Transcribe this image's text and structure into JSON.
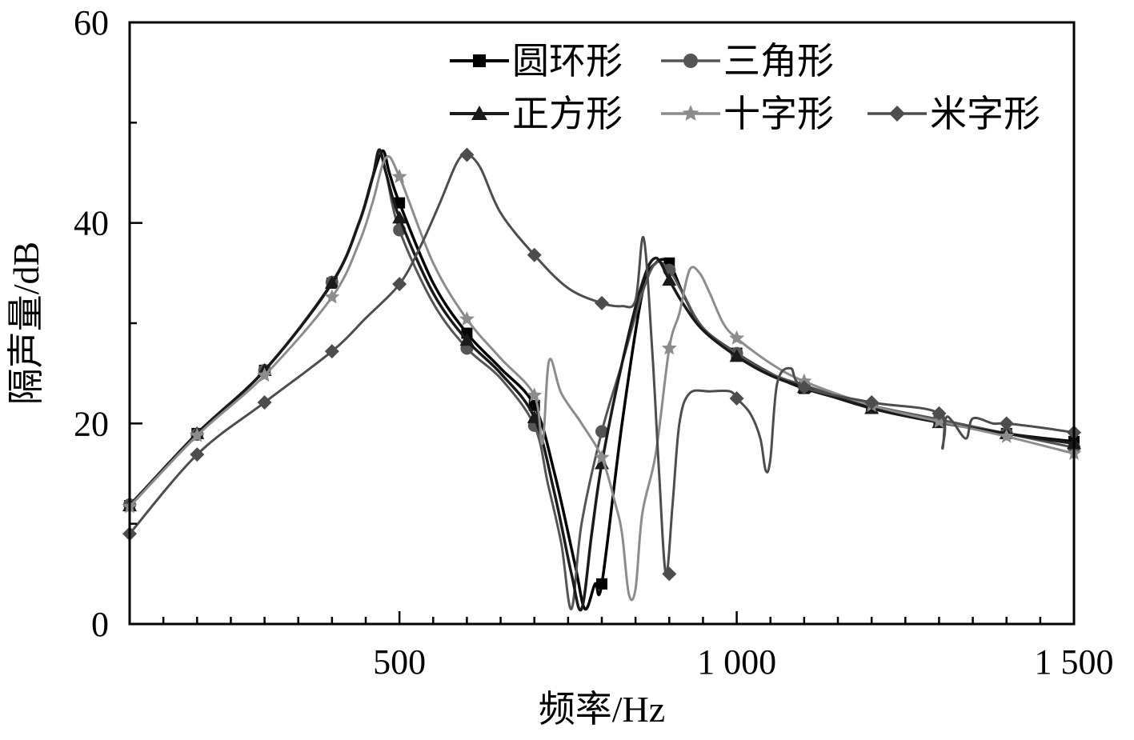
{
  "chart_data": {
    "type": "line",
    "xlabel": "频率/Hz",
    "ylabel": "隔声量/dB",
    "xlim": [
      100,
      1500
    ],
    "ylim": [
      0,
      60
    ],
    "x_ticks": [
      500,
      1000,
      1500
    ],
    "x_tick_labels": [
      "500",
      "1 000",
      "1 500"
    ],
    "y_ticks": [
      0,
      20,
      40,
      60
    ],
    "y_tick_labels": [
      "0",
      "20",
      "40",
      "60"
    ],
    "legend_position": "top-right",
    "series": [
      {
        "name": "圆环形",
        "color": "#000000",
        "marker": "square",
        "width": 3.5,
        "points": [
          [
            100,
            11.8
          ],
          [
            200,
            19
          ],
          [
            300,
            25.3
          ],
          [
            400,
            34
          ],
          [
            440,
            40
          ],
          [
            460,
            44.5
          ],
          [
            475,
            47.2
          ],
          [
            485,
            45
          ],
          [
            500,
            42
          ],
          [
            550,
            34
          ],
          [
            600,
            29
          ],
          [
            650,
            25.5
          ],
          [
            700,
            21.8
          ],
          [
            730,
            15
          ],
          [
            760,
            6
          ],
          [
            775,
            1.5
          ],
          [
            790,
            4
          ],
          [
            800,
            4
          ],
          [
            830,
            20
          ],
          [
            860,
            33
          ],
          [
            880,
            36
          ],
          [
            900,
            36
          ],
          [
            920,
            33
          ],
          [
            950,
            29.5
          ],
          [
            1000,
            27
          ],
          [
            1050,
            25
          ],
          [
            1100,
            23.5
          ],
          [
            1200,
            21.7
          ],
          [
            1300,
            20.3
          ],
          [
            1400,
            19
          ],
          [
            1500,
            18.2
          ]
        ],
        "markers": [
          [
            100,
            11.8
          ],
          [
            200,
            19
          ],
          [
            300,
            25.3
          ],
          [
            400,
            34
          ],
          [
            500,
            42
          ],
          [
            600,
            29
          ],
          [
            700,
            21.8
          ],
          [
            800,
            4
          ],
          [
            900,
            36
          ],
          [
            1000,
            27
          ],
          [
            1100,
            23.5
          ],
          [
            1200,
            21.7
          ],
          [
            1300,
            20.3
          ],
          [
            1400,
            19
          ],
          [
            1500,
            18.2
          ]
        ]
      },
      {
        "name": "三角形",
        "color": "#555555",
        "marker": "circle",
        "width": 3,
        "points": [
          [
            100,
            11.9
          ],
          [
            200,
            18.9
          ],
          [
            300,
            25.3
          ],
          [
            400,
            34.1
          ],
          [
            440,
            40
          ],
          [
            460,
            44.5
          ],
          [
            470,
            47
          ],
          [
            480,
            45
          ],
          [
            500,
            39.3
          ],
          [
            550,
            32
          ],
          [
            600,
            27.5
          ],
          [
            650,
            24.5
          ],
          [
            700,
            19.8
          ],
          [
            720,
            14
          ],
          [
            740,
            8
          ],
          [
            755,
            1.5
          ],
          [
            770,
            10
          ],
          [
            800,
            19.2
          ],
          [
            830,
            26
          ],
          [
            860,
            33
          ],
          [
            880,
            36
          ],
          [
            900,
            35.3
          ],
          [
            920,
            33
          ],
          [
            950,
            29.5
          ],
          [
            1000,
            27
          ],
          [
            1050,
            25
          ],
          [
            1100,
            23.8
          ],
          [
            1200,
            21.8
          ],
          [
            1300,
            20.4
          ],
          [
            1400,
            19
          ],
          [
            1500,
            17.6
          ]
        ],
        "markers": [
          [
            100,
            11.9
          ],
          [
            200,
            18.9
          ],
          [
            300,
            25.3
          ],
          [
            400,
            34.1
          ],
          [
            500,
            39.3
          ],
          [
            600,
            27.5
          ],
          [
            700,
            19.8
          ],
          [
            800,
            19.2
          ],
          [
            900,
            35.3
          ],
          [
            1000,
            27
          ],
          [
            1100,
            23.8
          ],
          [
            1200,
            21.8
          ],
          [
            1300,
            20.4
          ],
          [
            1400,
            19
          ],
          [
            1500,
            17.6
          ]
        ]
      },
      {
        "name": "正方形",
        "color": "#1a1a1a",
        "marker": "triangle",
        "width": 3.5,
        "points": [
          [
            100,
            11.8
          ],
          [
            200,
            19
          ],
          [
            300,
            25.3
          ],
          [
            400,
            34
          ],
          [
            440,
            40
          ],
          [
            460,
            44.5
          ],
          [
            470,
            47.3
          ],
          [
            480,
            45
          ],
          [
            500,
            40.5
          ],
          [
            550,
            33
          ],
          [
            600,
            28.3
          ],
          [
            650,
            25
          ],
          [
            700,
            20.6
          ],
          [
            730,
            13
          ],
          [
            755,
            5
          ],
          [
            770,
            1.5
          ],
          [
            785,
            9
          ],
          [
            800,
            16
          ],
          [
            830,
            26
          ],
          [
            860,
            34
          ],
          [
            880,
            36.5
          ],
          [
            900,
            34.3
          ],
          [
            920,
            32
          ],
          [
            950,
            29.3
          ],
          [
            1000,
            26.7
          ],
          [
            1050,
            24.8
          ],
          [
            1100,
            23.6
          ],
          [
            1200,
            21.5
          ],
          [
            1300,
            20.1
          ],
          [
            1400,
            19
          ],
          [
            1500,
            18
          ]
        ],
        "markers": [
          [
            100,
            11.8
          ],
          [
            200,
            19
          ],
          [
            300,
            25.3
          ],
          [
            400,
            34
          ],
          [
            500,
            40.5
          ],
          [
            600,
            28.3
          ],
          [
            700,
            20.6
          ],
          [
            800,
            16
          ],
          [
            900,
            34.3
          ],
          [
            1000,
            26.7
          ],
          [
            1100,
            23.6
          ],
          [
            1200,
            21.5
          ],
          [
            1300,
            20.1
          ],
          [
            1400,
            19
          ],
          [
            1500,
            18
          ]
        ]
      },
      {
        "name": "十字形",
        "color": "#8c8c8c",
        "marker": "star",
        "width": 3,
        "points": [
          [
            100,
            11.7
          ],
          [
            200,
            18.8
          ],
          [
            300,
            24.8
          ],
          [
            400,
            32.6
          ],
          [
            440,
            38
          ],
          [
            460,
            42
          ],
          [
            480,
            46.5
          ],
          [
            500,
            44.6
          ],
          [
            550,
            36
          ],
          [
            600,
            30.4
          ],
          [
            650,
            26.5
          ],
          [
            700,
            22.8
          ],
          [
            712,
            18
          ],
          [
            722,
            26.3
          ],
          [
            740,
            23
          ],
          [
            770,
            20
          ],
          [
            800,
            16.6
          ],
          [
            820,
            12
          ],
          [
            830,
            9
          ],
          [
            840,
            3
          ],
          [
            850,
            3.5
          ],
          [
            860,
            11
          ],
          [
            880,
            17
          ],
          [
            900,
            27.5
          ],
          [
            915,
            31
          ],
          [
            930,
            35.3
          ],
          [
            945,
            35
          ],
          [
            960,
            33
          ],
          [
            980,
            30
          ],
          [
            1000,
            28.5
          ],
          [
            1050,
            26
          ],
          [
            1100,
            24.2
          ],
          [
            1200,
            21.8
          ],
          [
            1300,
            20.2
          ],
          [
            1400,
            18.7
          ],
          [
            1500,
            17
          ]
        ],
        "markers": [
          [
            100,
            11.7
          ],
          [
            200,
            18.8
          ],
          [
            300,
            24.8
          ],
          [
            400,
            32.6
          ],
          [
            500,
            44.6
          ],
          [
            600,
            30.4
          ],
          [
            700,
            22.8
          ],
          [
            800,
            16.6
          ],
          [
            900,
            27.5
          ],
          [
            1000,
            28.5
          ],
          [
            1100,
            24.2
          ],
          [
            1200,
            21.8
          ],
          [
            1300,
            20.2
          ],
          [
            1400,
            18.7
          ],
          [
            1500,
            17
          ]
        ]
      },
      {
        "name": "米字形",
        "color": "#4d4d4d",
        "marker": "diamond",
        "width": 3,
        "points": [
          [
            100,
            9
          ],
          [
            200,
            16.9
          ],
          [
            300,
            22.1
          ],
          [
            400,
            27.2
          ],
          [
            450,
            30.5
          ],
          [
            500,
            33.9
          ],
          [
            530,
            37.5
          ],
          [
            560,
            42
          ],
          [
            585,
            46
          ],
          [
            600,
            46.8
          ],
          [
            620,
            45.5
          ],
          [
            650,
            41
          ],
          [
            700,
            36.8
          ],
          [
            750,
            33.5
          ],
          [
            800,
            32
          ],
          [
            830,
            31.7
          ],
          [
            850,
            32.3
          ],
          [
            862,
            38.5
          ],
          [
            875,
            27
          ],
          [
            885,
            15
          ],
          [
            895,
            5
          ],
          [
            905,
            12
          ],
          [
            915,
            20
          ],
          [
            930,
            23
          ],
          [
            960,
            23.2
          ],
          [
            990,
            23.2
          ],
          [
            1000,
            22.5
          ],
          [
            1020,
            21
          ],
          [
            1035,
            18.5
          ],
          [
            1043,
            15.3
          ],
          [
            1050,
            16.5
          ],
          [
            1060,
            24
          ],
          [
            1080,
            25.5
          ],
          [
            1100,
            23.6
          ],
          [
            1200,
            22.1
          ],
          [
            1300,
            21
          ],
          [
            1305,
            17.5
          ],
          [
            1310,
            20.5
          ],
          [
            1320,
            20.2
          ],
          [
            1340,
            18.5
          ],
          [
            1350,
            20.5
          ],
          [
            1380,
            20
          ],
          [
            1400,
            20
          ],
          [
            1450,
            19.6
          ],
          [
            1500,
            19.1
          ]
        ],
        "markers": [
          [
            100,
            9
          ],
          [
            200,
            16.9
          ],
          [
            300,
            22.1
          ],
          [
            400,
            27.2
          ],
          [
            500,
            33.9
          ],
          [
            600,
            46.8
          ],
          [
            700,
            36.8
          ],
          [
            800,
            32
          ],
          [
            900,
            5
          ],
          [
            1000,
            22.5
          ],
          [
            1100,
            23.6
          ],
          [
            1200,
            22.1
          ],
          [
            1300,
            21
          ],
          [
            1400,
            20
          ],
          [
            1500,
            19.1
          ]
        ]
      }
    ]
  }
}
